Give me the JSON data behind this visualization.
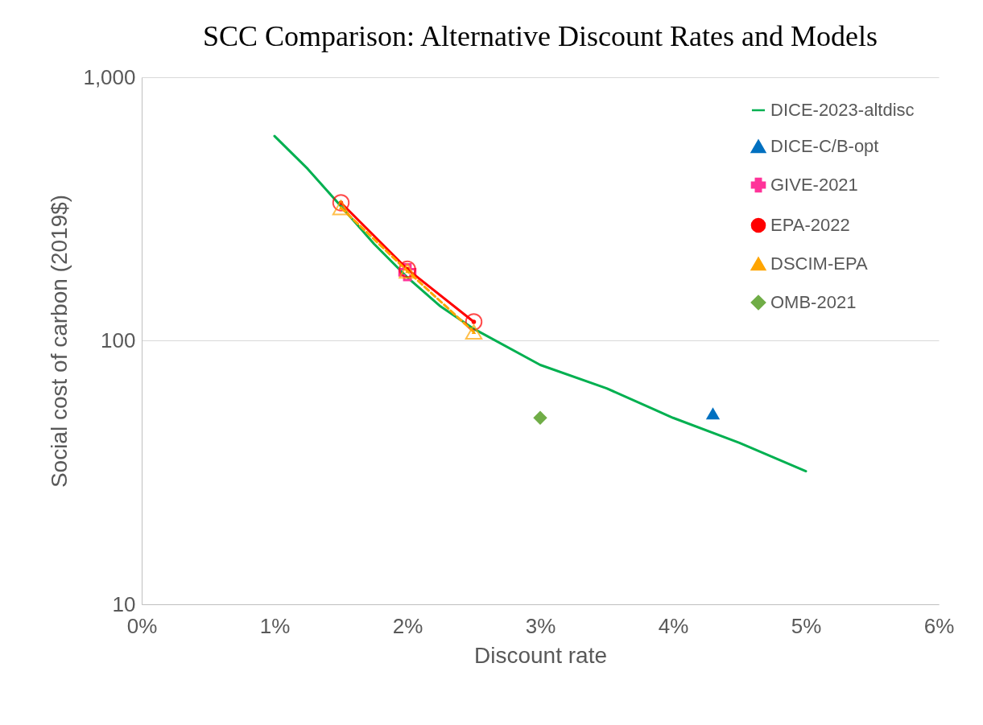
{
  "chart_data": {
    "type": "line",
    "title": "SCC Comparison: Alternative Discount Rates and Models",
    "xlabel": "Discount rate",
    "ylabel": "Social cost of carbon (2019$)",
    "xlim": [
      0,
      6
    ],
    "xticks": [
      {
        "value": 0,
        "label": "0%"
      },
      {
        "value": 1,
        "label": "1%"
      },
      {
        "value": 2,
        "label": "2%"
      },
      {
        "value": 3,
        "label": "3%"
      },
      {
        "value": 4,
        "label": "4%"
      },
      {
        "value": 5,
        "label": "5%"
      },
      {
        "value": 6,
        "label": "6%"
      }
    ],
    "ylim": [
      10,
      1000
    ],
    "yticks": [
      10,
      100,
      {
        "value": 1000,
        "label": "1,000"
      }
    ],
    "log": true,
    "grid": "y",
    "legend": "top right",
    "series": [
      {
        "name": "DICE-2023-altdisc",
        "color": "#00b050",
        "marker": "none",
        "line_style": "solid",
        "x": [
          1,
          1.25,
          1.5,
          1.75,
          2,
          2.25,
          2.5,
          3,
          3.5,
          4,
          4.5,
          5
        ],
        "values": [
          598,
          449,
          324,
          233,
          174,
          135,
          111,
          81,
          66,
          51,
          41,
          32
        ]
      },
      {
        "name": "DICE-C/B-opt",
        "type": "scatter",
        "color": "#0070c0",
        "marker": "triangle",
        "x": [
          4.3
        ],
        "values": [
          53
        ]
      },
      {
        "name": "GIVE-2021",
        "type": "scatter",
        "color": "#ff3399",
        "marker": "cross",
        "x": [
          2
        ],
        "values": [
          182
        ]
      },
      {
        "name": "EPA-2022",
        "color": "#ff0000",
        "marker": "circle",
        "line_style": "solid",
        "x": [
          1.5,
          2,
          2.5
        ],
        "values": [
          334,
          187,
          118
        ]
      },
      {
        "name": "DSCIM-EPA",
        "color": "#ffa500",
        "marker": "triangle",
        "line_style": "dashed",
        "x": [
          1.5,
          2,
          2.5
        ],
        "values": [
          320,
          184,
          108
        ]
      },
      {
        "name": "OMB-2021",
        "type": "scatter",
        "color": "#70ad47",
        "marker": "diamond",
        "x": [
          3
        ],
        "values": [
          51
        ]
      }
    ]
  }
}
